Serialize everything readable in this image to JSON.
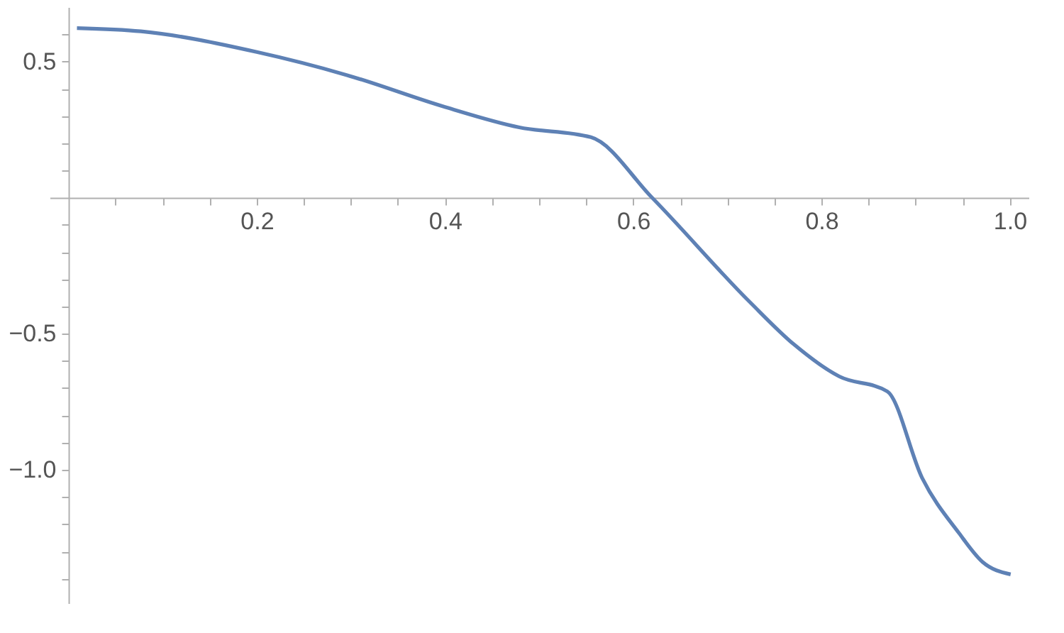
{
  "chart_data": {
    "type": "line",
    "x": [
      0.009,
      0.077,
      0.2,
      0.296,
      0.4,
      0.479,
      0.555,
      0.62,
      0.724,
      0.771,
      0.819,
      0.87,
      0.907,
      0.946,
      0.971,
      1.001
    ],
    "series": [
      {
        "color": "#5e81b5",
        "values": [
          0.623,
          0.611,
          0.535,
          0.45,
          0.333,
          0.258,
          0.222,
          0,
          -0.384,
          -0.54,
          -0.657,
          -0.712,
          -1.03,
          -1.232,
          -1.338,
          -1.384
        ]
      }
    ],
    "xlim": [
      -0.02,
      1.02
    ],
    "ylim": [
      -1.49,
      0.7
    ],
    "xticks": [
      {
        "value": 0.05,
        "label": null
      },
      {
        "value": 0.1,
        "label": null
      },
      {
        "value": 0.15,
        "label": null
      },
      0.2,
      {
        "value": 0.25,
        "label": null
      },
      {
        "value": 0.3,
        "label": null
      },
      {
        "value": 0.35,
        "label": null
      },
      0.4,
      {
        "value": 0.45,
        "label": null
      },
      {
        "value": 0.5,
        "label": null
      },
      {
        "value": 0.55,
        "label": null
      },
      0.6,
      {
        "value": 0.65,
        "label": null
      },
      {
        "value": 0.7,
        "label": null
      },
      {
        "value": 0.75,
        "label": null
      },
      0.8,
      {
        "value": 0.85,
        "label": null
      },
      {
        "value": 0.9,
        "label": null
      },
      {
        "value": 0.95,
        "label": null
      },
      {
        "value": 1,
        "label": "1.0"
      }
    ],
    "yticks": [
      {
        "value": 0.6,
        "label": null
      },
      0.5,
      {
        "value": 0.4,
        "label": null
      },
      {
        "value": 0.3,
        "label": null
      },
      {
        "value": 0.2,
        "label": null
      },
      {
        "value": 0.1,
        "label": null
      },
      {
        "value": -0.1,
        "label": null
      },
      {
        "value": -0.2,
        "label": null
      },
      {
        "value": -0.3,
        "label": null
      },
      {
        "value": -0.4,
        "label": null
      },
      {
        "value": -0.5,
        "label": "−0.5"
      },
      {
        "value": -0.6,
        "label": null
      },
      {
        "value": -0.7,
        "label": null
      },
      {
        "value": -0.8,
        "label": null
      },
      {
        "value": -0.9,
        "label": null
      },
      {
        "value": -1,
        "label": "−1.0"
      },
      {
        "value": -1.1,
        "label": null
      },
      {
        "value": -1.2,
        "label": null
      },
      {
        "value": -1.3,
        "label": null
      },
      {
        "value": -1.4,
        "label": null
      }
    ],
    "grid": false,
    "marker": "none",
    "line_style": "solid"
  }
}
